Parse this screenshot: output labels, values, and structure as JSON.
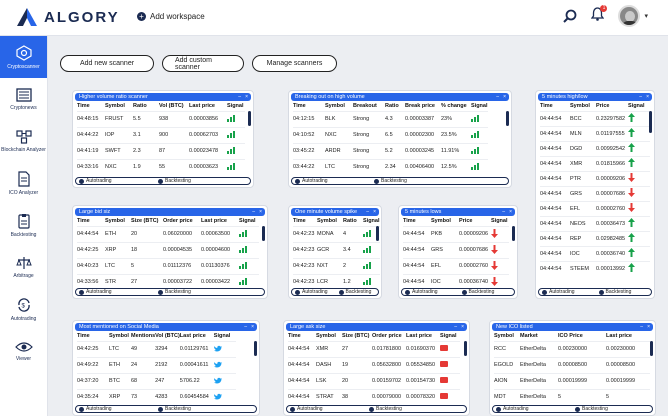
{
  "app": {
    "name": "ALGORY",
    "add_workspace": "Add workspace",
    "notif_count": "1"
  },
  "sidebar": [
    {
      "label": "Cryptoscanner",
      "icon": "scanner-icon"
    },
    {
      "label": "Cryptonews",
      "icon": "news-icon"
    },
    {
      "label": "Blockchain Analyzer",
      "icon": "blockchain-icon"
    },
    {
      "label": "ICO Analyzer",
      "icon": "ico-icon"
    },
    {
      "label": "Backtesting",
      "icon": "backtesting-icon"
    },
    {
      "label": "Arbitrage",
      "icon": "arbitrage-icon"
    },
    {
      "label": "Autotrading",
      "icon": "autotrading-icon"
    },
    {
      "label": "Viewer",
      "icon": "viewer-icon"
    }
  ],
  "buttons": [
    "Add new scanner",
    "Add custom scanner",
    "Manage  scanners"
  ],
  "footer": {
    "autotrading": "Autotrading",
    "backtesting": "Backtesting"
  },
  "panels": {
    "p1": {
      "title": "Higher volume ratio scanner",
      "cols": [
        "Time",
        "Symbol",
        "Ratio",
        "Vol (BTC)",
        "Last price",
        "Signal"
      ],
      "rows": [
        [
          "04:48:15",
          "FRUST",
          "5.5",
          "938",
          "0.00003856"
        ],
        [
          "04:44:22",
          "IOP",
          "3.1",
          "900",
          "0.00062703"
        ],
        [
          "04:41:19",
          "SWFT",
          "2.3",
          "87",
          "0.00023478"
        ],
        [
          "04:33:16",
          "NXC",
          "1.9",
          "55",
          "0.00003623"
        ]
      ]
    },
    "p2": {
      "title": "Breaking out on high volume",
      "cols": [
        "Time",
        "Symbol",
        "Breakout",
        "Ratio",
        "Break price",
        "% change",
        "Signal"
      ],
      "rows": [
        [
          "04:12:15",
          "BLK",
          "Strong",
          "4.3",
          "0.00003387",
          "23%"
        ],
        [
          "04:10:52",
          "NXC",
          "Strong",
          "6.5",
          "0.00002300",
          "23.5%"
        ],
        [
          "03:45:22",
          "ARDR",
          "Strong",
          "5.2",
          "0.00003245",
          "11.91%"
        ],
        [
          "03:44:22",
          "LTC",
          "Strong",
          "2.34",
          "0.00406400",
          "12.5%"
        ]
      ]
    },
    "p3": {
      "title": "5 minutes high/low",
      "cols": [
        "Time",
        "Symbol",
        "Price",
        "Signal"
      ],
      "rows": [
        [
          "04:44:54",
          "BCC",
          "0.23297582",
          "up"
        ],
        [
          "04:44:54",
          "MLN",
          "0.01197555",
          "up"
        ],
        [
          "04:44:54",
          "DGD",
          "0.00992542",
          "up"
        ],
        [
          "04:44:54",
          "XMR",
          "0.01815966",
          "up"
        ],
        [
          "04:44:54",
          "PTR",
          "0.00009206",
          "down"
        ],
        [
          "04:44:54",
          "GRS",
          "0.00007686",
          "down"
        ],
        [
          "04:44:54",
          "EFL",
          "0.00002760",
          "down"
        ],
        [
          "04:44:54",
          "NEOS",
          "0.00036473",
          "up"
        ],
        [
          "04:44:54",
          "REP",
          "0.02982485",
          "up"
        ],
        [
          "04:44:54",
          "IOC",
          "0.00036740",
          "up"
        ],
        [
          "04:44:54",
          "STEEM",
          "0.00013992",
          "up"
        ]
      ]
    },
    "p4": {
      "title": "Large bid siz",
      "cols": [
        "Time",
        "Symbol",
        "Size (BTC)",
        "Order price",
        "Last price",
        "Signal"
      ],
      "rows": [
        [
          "04:44:54",
          "ETH",
          "20",
          "0.06020000",
          "0.00063500"
        ],
        [
          "04:42:25",
          "XRP",
          "18",
          "0.00004535",
          "0.00004600"
        ],
        [
          "04:40:23",
          "LTC",
          "5",
          "0.01112376",
          "0.01130376"
        ],
        [
          "04:33:56",
          "STR",
          "27",
          "0.00003722",
          "0.00003422"
        ]
      ]
    },
    "p5": {
      "title": "One minute volume spike",
      "cols": [
        "Time",
        "Symbol",
        "Ratio",
        "Signal"
      ],
      "rows": [
        [
          "04:42:23",
          "MONA",
          "4"
        ],
        [
          "04:42:23",
          "GCR",
          "3.4"
        ],
        [
          "04:42:23",
          "NXT",
          "2"
        ],
        [
          "04:42:23",
          "LCR",
          "1.2"
        ]
      ]
    },
    "p6": {
      "title": "5 minutes lows",
      "cols": [
        "Time",
        "Symbol",
        "Price",
        "Signal"
      ],
      "rows": [
        [
          "04:44:54",
          "PKB",
          "0.00009206"
        ],
        [
          "04:44:54",
          "GRS",
          "0.00007686"
        ],
        [
          "04:44:54",
          "EFL",
          "0.00002760"
        ],
        [
          "04:44:54",
          "IOC",
          "0.00036740"
        ]
      ]
    },
    "p7": {
      "title": "Most mentioned on Social Media",
      "cols": [
        "Time",
        "Symbol",
        "Mentions",
        "Vol (BTC)",
        "Last price",
        "Signal"
      ],
      "rows": [
        [
          "04:42:25",
          "LTC",
          "49",
          "3294",
          "0.01129761"
        ],
        [
          "04:49:22",
          "ETH",
          "24",
          "2192",
          "0.00041611"
        ],
        [
          "04:37:20",
          "BTC",
          "68",
          "247",
          "5706.22"
        ],
        [
          "04:35:24",
          "XRP",
          "73",
          "4283",
          "0.60454584"
        ]
      ]
    },
    "p8": {
      "title": "Large ask size",
      "cols": [
        "Time",
        "Symbol",
        "Size (BTC)",
        "Order price",
        "Last price",
        "Signal"
      ],
      "rows": [
        [
          "04:44:54",
          "XMR",
          "27",
          "0.01781800",
          "0.01690370"
        ],
        [
          "04:44:54",
          "DASH",
          "19",
          "0.05632800",
          "0.05534850"
        ],
        [
          "04:44:54",
          "LSK",
          "20",
          "0.00159702",
          "0.00154730"
        ],
        [
          "04:44:54",
          "STRAT",
          "38",
          "0.00079000",
          "0.00078320"
        ]
      ]
    },
    "p9": {
      "title": "New ICO listed",
      "cols": [
        "Symbol",
        "Market",
        "ICO Price",
        "Last price"
      ],
      "rows": [
        [
          "RCC",
          "EtherDelta",
          "0.00230000",
          "0.00230000"
        ],
        [
          "EGOLD",
          "EtherDelta",
          "0.00008500",
          "0.00008500"
        ],
        [
          "AION",
          "EtherDelta",
          "0.00019999",
          "0.00019999"
        ],
        [
          "MDT",
          "EtherDelta",
          "5",
          "5"
        ]
      ]
    }
  }
}
